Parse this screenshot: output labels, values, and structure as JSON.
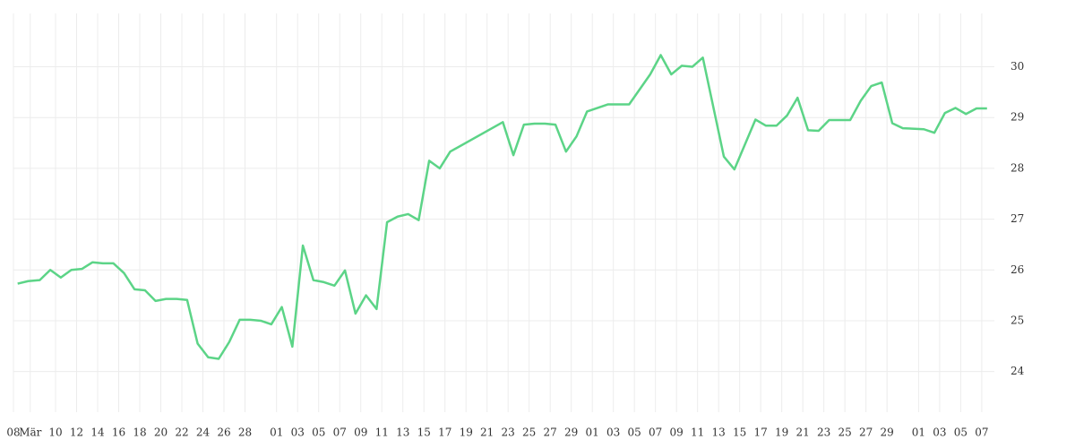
{
  "chart_data": {
    "type": "line",
    "x": [
      6.4,
      7.4,
      8.5,
      9.5,
      10.5,
      11.5,
      12.5,
      13.5,
      14.5,
      15.5,
      16.5,
      17.5,
      18.5,
      19.5,
      20.5,
      21.5,
      22.5,
      23.5,
      24.5,
      25.5,
      26.5,
      27.5,
      28.5,
      29.5,
      30.5,
      31.5,
      32.5,
      33.5,
      34.5,
      35.5,
      36.5,
      37.5,
      38.5,
      39.5,
      40.5,
      41.5,
      42.5,
      43.5,
      44.5,
      45.5,
      46.5,
      47.5,
      52.5,
      53.5,
      54.5,
      55.5,
      56.5,
      57.5,
      58.5,
      59.5,
      60.5,
      62.5,
      64.5,
      66.5,
      67.5,
      68.5,
      69.5,
      70.5,
      71.5,
      73.5,
      74.5,
      76.5,
      77.5,
      78.5,
      79.5,
      80.5,
      81.5,
      82.5,
      83.5,
      85.5,
      86.5,
      87.5,
      88.5,
      89.5,
      90.5,
      92.5,
      93.5,
      94.5,
      95.5,
      96.5,
      97.5,
      98.5
    ],
    "values": [
      25.73,
      25.78,
      25.8,
      26.0,
      25.85,
      26.0,
      26.02,
      26.15,
      26.13,
      26.13,
      25.94,
      25.62,
      25.6,
      25.39,
      25.43,
      25.43,
      25.41,
      24.55,
      24.28,
      24.25,
      24.58,
      25.02,
      25.02,
      25.0,
      24.93,
      25.27,
      24.49,
      26.48,
      25.8,
      25.76,
      25.69,
      25.99,
      25.14,
      25.5,
      25.23,
      26.94,
      27.05,
      27.1,
      26.98,
      28.15,
      28.0,
      28.33,
      28.91,
      28.26,
      28.86,
      28.88,
      28.88,
      28.86,
      28.33,
      28.63,
      29.12,
      29.26,
      29.26,
      29.85,
      30.23,
      29.85,
      30.02,
      30.0,
      30.18,
      28.23,
      27.98,
      28.96,
      28.84,
      28.84,
      29.04,
      29.39,
      28.75,
      28.74,
      28.95,
      28.95,
      29.33,
      29.62,
      29.69,
      28.89,
      28.79,
      28.77,
      28.7,
      29.09,
      29.19,
      29.07,
      29.18,
      29.18
    ],
    "color": "#5cd487",
    "xlim": [
      6.0,
      99.2
    ],
    "xticks": [
      {
        "value": 6,
        "label": "08"
      },
      {
        "value": 7.6,
        "label": "Mär"
      },
      10,
      12,
      14,
      16,
      18,
      20,
      22,
      24,
      26,
      28,
      {
        "value": 31,
        "label": "01"
      },
      {
        "value": 33,
        "label": "03"
      },
      {
        "value": 35,
        "label": "05"
      },
      {
        "value": 37,
        "label": "07"
      },
      {
        "value": 39,
        "label": "09"
      },
      {
        "value": 41,
        "label": "11"
      },
      {
        "value": 43,
        "label": "13"
      },
      {
        "value": 45,
        "label": "15"
      },
      {
        "value": 47,
        "label": "17"
      },
      {
        "value": 49,
        "label": "19"
      },
      {
        "value": 51,
        "label": "21"
      },
      {
        "value": 53,
        "label": "23"
      },
      {
        "value": 55,
        "label": "25"
      },
      {
        "value": 57,
        "label": "27"
      },
      {
        "value": 59,
        "label": "29"
      },
      {
        "value": 61,
        "label": "01"
      },
      {
        "value": 63,
        "label": "03"
      },
      {
        "value": 65,
        "label": "05"
      },
      {
        "value": 67,
        "label": "07"
      },
      {
        "value": 69,
        "label": "09"
      },
      {
        "value": 71,
        "label": "11"
      },
      {
        "value": 73,
        "label": "13"
      },
      {
        "value": 75,
        "label": "15"
      },
      {
        "value": 77,
        "label": "17"
      },
      {
        "value": 79,
        "label": "19"
      },
      {
        "value": 81,
        "label": "21"
      },
      {
        "value": 83,
        "label": "23"
      },
      {
        "value": 85,
        "label": "25"
      },
      {
        "value": 87,
        "label": "27"
      },
      {
        "value": 89,
        "label": "29"
      },
      {
        "value": 92,
        "label": "01"
      },
      {
        "value": 94,
        "label": "03"
      },
      {
        "value": 96,
        "label": "05"
      },
      {
        "value": 98,
        "label": "07"
      }
    ],
    "ylim": [
      23.2,
      31.05
    ],
    "yticks": [
      24,
      25,
      26,
      27,
      28,
      29,
      30
    ],
    "grid": true
  }
}
